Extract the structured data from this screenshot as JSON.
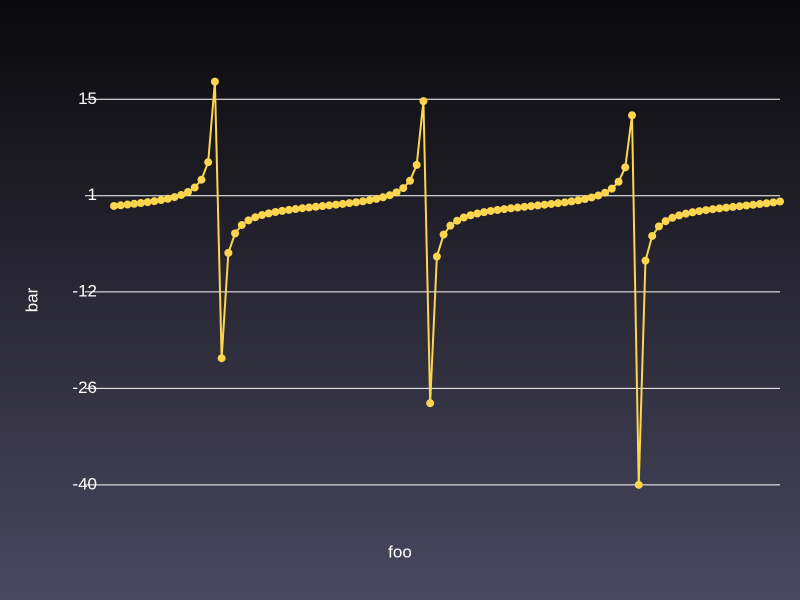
{
  "chart_data": {
    "type": "line",
    "xlabel": "foo",
    "ylabel": "bar",
    "x": [
      0,
      0.101,
      0.202,
      0.303,
      0.404,
      0.505,
      0.606,
      0.707,
      0.808,
      0.909,
      1.01,
      1.111,
      1.212,
      1.313,
      1.414,
      1.515,
      1.616,
      1.717,
      1.818,
      1.919,
      2.02,
      2.121,
      2.222,
      2.323,
      2.424,
      2.525,
      2.626,
      2.727,
      2.828,
      2.929,
      3.03,
      3.131,
      3.232,
      3.333,
      3.434,
      3.535,
      3.636,
      3.737,
      3.838,
      3.939,
      4.04,
      4.141,
      4.242,
      4.343,
      4.444,
      4.545,
      4.646,
      4.747,
      4.848,
      4.949,
      5.051,
      5.152,
      5.253,
      5.354,
      5.455,
      5.556,
      5.657,
      5.758,
      5.859,
      5.96,
      6.061,
      6.162,
      6.263,
      6.364,
      6.465,
      6.566,
      6.667,
      6.768,
      6.869,
      6.97,
      7.071,
      7.172,
      7.273,
      7.374,
      7.475,
      7.576,
      7.677,
      7.778,
      7.879,
      7.98,
      8.081,
      8.182,
      8.283,
      8.384,
      8.485,
      8.586,
      8.687,
      8.788,
      8.889,
      8.99,
      9.091,
      9.192,
      9.293,
      9.394,
      9.495,
      9.596,
      9.697,
      9.798,
      9.899,
      10
    ],
    "series": [
      {
        "color": "#fdd54f",
        "values": [
          0,
          0.101,
          0.205,
          0.313,
          0.428,
          0.554,
          0.695,
          0.855,
          1.043,
          1.284,
          1.592,
          2.018,
          2.665,
          3.794,
          6.33,
          17.97,
          -22.0,
          -6.78,
          -3.959,
          -2.752,
          -2.073,
          -1.627,
          -1.311,
          -1.071,
          -0.871,
          -0.709,
          -0.567,
          -0.44,
          -0.324,
          -0.216,
          -0.112,
          -0.01,
          0.091,
          0.194,
          0.301,
          0.416,
          0.54,
          0.68,
          0.837,
          1.025,
          1.257,
          1.557,
          1.969,
          2.583,
          3.642,
          5.935,
          15.15,
          -28.5,
          -7.305,
          -4.137,
          -2.843,
          -2.128,
          -1.667,
          -1.339,
          -1.091,
          -0.891,
          -0.724,
          -0.58,
          -0.452,
          -0.335,
          -0.226,
          -0.122,
          -0.021,
          0.081,
          0.183,
          0.29,
          0.403,
          0.526,
          0.665,
          0.82,
          1.004,
          1.231,
          1.52,
          1.918,
          2.509,
          3.501,
          5.583,
          13.11,
          -40.3,
          -7.905,
          -4.333,
          -2.94,
          -2.188,
          -1.708,
          -1.367,
          -1.113,
          -0.909,
          -0.74,
          -0.594,
          -0.465,
          -0.347,
          -0.237,
          -0.133,
          -0.031,
          0.07,
          0.173,
          0.279,
          0.392,
          0.513,
          0.648
        ]
      }
    ],
    "xlim": [
      0,
      10
    ],
    "ylim": [
      -42,
      19
    ],
    "yticks": [
      {
        "value": -40.3,
        "label": "-40"
      },
      {
        "value": -26.36,
        "label": "-26"
      },
      {
        "value": -12.42,
        "label": "-12"
      },
      {
        "value": 1.48,
        "label": "1"
      },
      {
        "value": 15.42,
        "label": "15"
      }
    ],
    "grid": true
  }
}
